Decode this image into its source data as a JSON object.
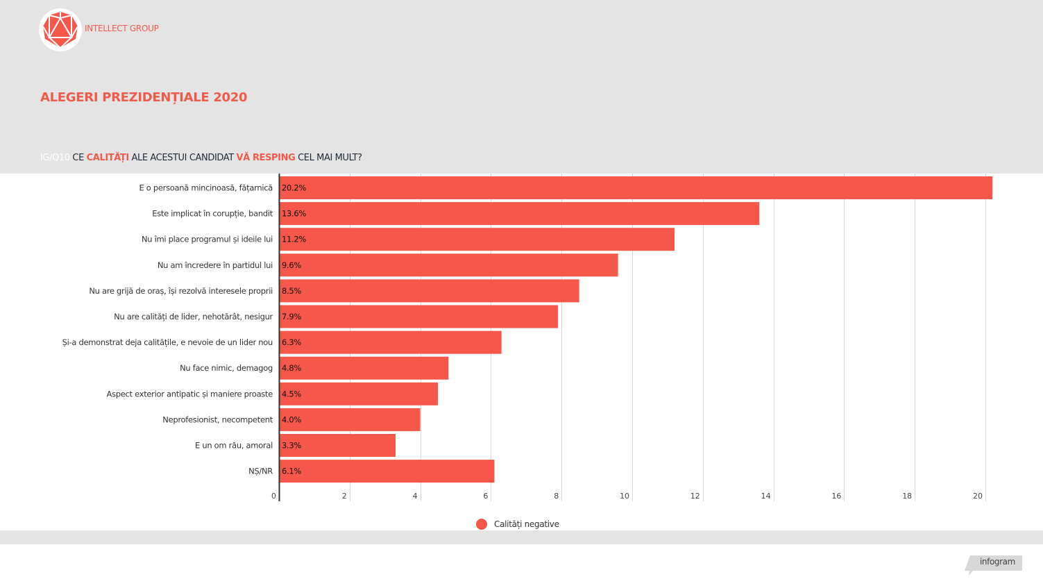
{
  "brand": {
    "name": "INTELLECT GROUP",
    "logo_icon": "icosahedron-logo-icon",
    "accent": "#f05a4b"
  },
  "header": {
    "title": "ALEGERI PREZIDENȚIALE 2020",
    "subtitle": {
      "code": "IG/Q10",
      "part1": "CE",
      "hl1": "CALITĂȚI",
      "part2": "ALE ACESTUI CANDIDAT",
      "hl2": "VĂ RESPING",
      "part3": "CEL MAI MULT?"
    }
  },
  "chart_data": {
    "type": "bar",
    "orientation": "horizontal",
    "categories": [
      "E o persoană mincinoasă, fățarnică",
      "Este implicat în corupție, bandit",
      "Nu îmi place programul și ideile lui",
      "Nu am încredere în partidul lui",
      "Nu are grijă de oraș, își rezolvă interesele proprii",
      "Nu are calități de lider, nehotărât, nesigur",
      "Și-a demonstrat deja calitățile, e nevoie de un lider nou",
      "Nu face nimic, demagog",
      "Aspect exterior antipatic și maniere proaste",
      "Neprofesionist, necompetent",
      "E un om rău, amoral",
      "NȘ/NR"
    ],
    "series": [
      {
        "name": "Calități negative",
        "color": "#f5584a",
        "values": [
          20.2,
          13.6,
          11.2,
          9.6,
          8.5,
          7.9,
          6.3,
          4.8,
          4.5,
          4.0,
          3.3,
          6.1
        ],
        "labels": [
          "20.2%",
          "13.6%",
          "11.2%",
          "9.6%",
          "8.5%",
          "7.9%",
          "6.3%",
          "4.8%",
          "4.5%",
          "4.0%",
          "3.3%",
          "6.1%"
        ]
      }
    ],
    "xlim": [
      0,
      21
    ],
    "xticks": [
      0,
      2,
      4,
      6,
      8,
      10,
      12,
      14,
      16,
      18,
      20
    ],
    "xtick_labels": [
      "0",
      "2",
      "4",
      "6",
      "8",
      "10",
      "12",
      "14",
      "16",
      "18",
      "20"
    ],
    "grid": true,
    "legend_position": "bottom-center"
  },
  "footer": {
    "badge": "infogram"
  }
}
